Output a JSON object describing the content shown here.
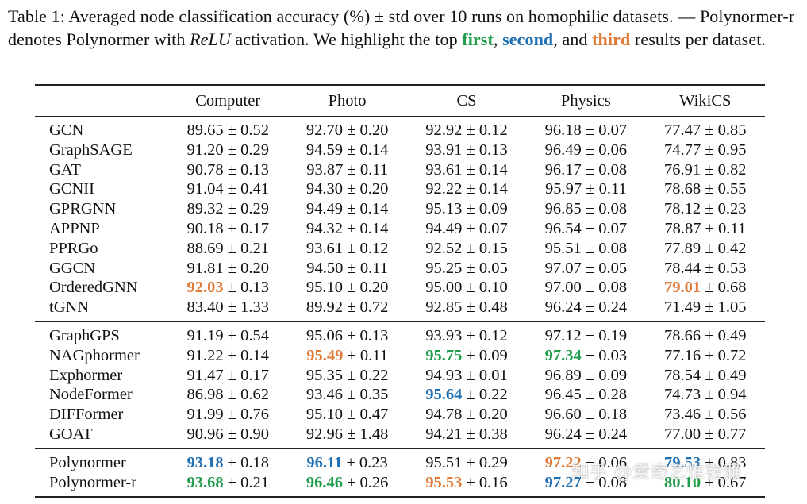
{
  "caption": {
    "part1": "Table 1: Averaged node classification accuracy (%) ± std over 10 runs on homophilic datasets. — Polynormer-r denotes Polynormer with ",
    "relu": "ReLU",
    "part2": " activation. We highlight the top ",
    "first": "first",
    "comma1": ", ",
    "second": "second",
    "comma2": ", and ",
    "third": "third",
    "part3": " results per dataset."
  },
  "colors": {
    "first": "#1f9d4a",
    "second": "#1f6fb2",
    "third": "#e07b39"
  },
  "table": {
    "columns": [
      "Computer",
      "Photo",
      "CS",
      "Physics",
      "WikiCS"
    ],
    "groups": [
      {
        "rows": [
          {
            "method": "GCN",
            "cells": [
              {
                "mean": "89.65",
                "std": "0.52"
              },
              {
                "mean": "92.70",
                "std": "0.20"
              },
              {
                "mean": "92.92",
                "std": "0.12"
              },
              {
                "mean": "96.18",
                "std": "0.07"
              },
              {
                "mean": "77.47",
                "std": "0.85"
              }
            ]
          },
          {
            "method": "GraphSAGE",
            "cells": [
              {
                "mean": "91.20",
                "std": "0.29"
              },
              {
                "mean": "94.59",
                "std": "0.14"
              },
              {
                "mean": "93.91",
                "std": "0.13"
              },
              {
                "mean": "96.49",
                "std": "0.06"
              },
              {
                "mean": "74.77",
                "std": "0.95"
              }
            ]
          },
          {
            "method": "GAT",
            "cells": [
              {
                "mean": "90.78",
                "std": "0.13"
              },
              {
                "mean": "93.87",
                "std": "0.11"
              },
              {
                "mean": "93.61",
                "std": "0.14"
              },
              {
                "mean": "96.17",
                "std": "0.08"
              },
              {
                "mean": "76.91",
                "std": "0.82"
              }
            ]
          },
          {
            "method": "GCNII",
            "cells": [
              {
                "mean": "91.04",
                "std": "0.41"
              },
              {
                "mean": "94.30",
                "std": "0.20"
              },
              {
                "mean": "92.22",
                "std": "0.14"
              },
              {
                "mean": "95.97",
                "std": "0.11"
              },
              {
                "mean": "78.68",
                "std": "0.55"
              }
            ]
          },
          {
            "method": "GPRGNN",
            "cells": [
              {
                "mean": "89.32",
                "std": "0.29"
              },
              {
                "mean": "94.49",
                "std": "0.14"
              },
              {
                "mean": "95.13",
                "std": "0.09"
              },
              {
                "mean": "96.85",
                "std": "0.08"
              },
              {
                "mean": "78.12",
                "std": "0.23"
              }
            ]
          },
          {
            "method": "APPNP",
            "cells": [
              {
                "mean": "90.18",
                "std": "0.17"
              },
              {
                "mean": "94.32",
                "std": "0.14"
              },
              {
                "mean": "94.49",
                "std": "0.07"
              },
              {
                "mean": "96.54",
                "std": "0.07"
              },
              {
                "mean": "78.87",
                "std": "0.11"
              }
            ]
          },
          {
            "method": "PPRGo",
            "cells": [
              {
                "mean": "88.69",
                "std": "0.21"
              },
              {
                "mean": "93.61",
                "std": "0.12"
              },
              {
                "mean": "92.52",
                "std": "0.15"
              },
              {
                "mean": "95.51",
                "std": "0.08"
              },
              {
                "mean": "77.89",
                "std": "0.42"
              }
            ]
          },
          {
            "method": "GGCN",
            "cells": [
              {
                "mean": "91.81",
                "std": "0.20"
              },
              {
                "mean": "94.50",
                "std": "0.11"
              },
              {
                "mean": "95.25",
                "std": "0.05"
              },
              {
                "mean": "97.07",
                "std": "0.05"
              },
              {
                "mean": "78.44",
                "std": "0.53"
              }
            ]
          },
          {
            "method": "OrderedGNN",
            "cells": [
              {
                "mean": "92.03",
                "std": "0.13",
                "rank": "third"
              },
              {
                "mean": "95.10",
                "std": "0.20"
              },
              {
                "mean": "95.00",
                "std": "0.10"
              },
              {
                "mean": "97.00",
                "std": "0.08"
              },
              {
                "mean": "79.01",
                "std": "0.68",
                "rank": "third"
              }
            ]
          },
          {
            "method": "tGNN",
            "cells": [
              {
                "mean": "83.40",
                "std": "1.33"
              },
              {
                "mean": "89.92",
                "std": "0.72"
              },
              {
                "mean": "92.85",
                "std": "0.48"
              },
              {
                "mean": "96.24",
                "std": "0.24"
              },
              {
                "mean": "71.49",
                "std": "1.05"
              }
            ]
          }
        ]
      },
      {
        "rows": [
          {
            "method": "GraphGPS",
            "cells": [
              {
                "mean": "91.19",
                "std": "0.54"
              },
              {
                "mean": "95.06",
                "std": "0.13"
              },
              {
                "mean": "93.93",
                "std": "0.12"
              },
              {
                "mean": "97.12",
                "std": "0.19"
              },
              {
                "mean": "78.66",
                "std": "0.49"
              }
            ]
          },
          {
            "method": "NAGphormer",
            "cells": [
              {
                "mean": "91.22",
                "std": "0.14"
              },
              {
                "mean": "95.49",
                "std": "0.11",
                "rank": "third"
              },
              {
                "mean": "95.75",
                "std": "0.09",
                "rank": "first"
              },
              {
                "mean": "97.34",
                "std": "0.03",
                "rank": "first"
              },
              {
                "mean": "77.16",
                "std": "0.72"
              }
            ]
          },
          {
            "method": "Exphormer",
            "cells": [
              {
                "mean": "91.47",
                "std": "0.17"
              },
              {
                "mean": "95.35",
                "std": "0.22"
              },
              {
                "mean": "94.93",
                "std": "0.01"
              },
              {
                "mean": "96.89",
                "std": "0.09"
              },
              {
                "mean": "78.54",
                "std": "0.49"
              }
            ]
          },
          {
            "method": "NodeFormer",
            "cells": [
              {
                "mean": "86.98",
                "std": "0.62"
              },
              {
                "mean": "93.46",
                "std": "0.35"
              },
              {
                "mean": "95.64",
                "std": "0.22",
                "rank": "second"
              },
              {
                "mean": "96.45",
                "std": "0.28"
              },
              {
                "mean": "74.73",
                "std": "0.94"
              }
            ]
          },
          {
            "method": "DIFFormer",
            "cells": [
              {
                "mean": "91.99",
                "std": "0.76"
              },
              {
                "mean": "95.10",
                "std": "0.47"
              },
              {
                "mean": "94.78",
                "std": "0.20"
              },
              {
                "mean": "96.60",
                "std": "0.18"
              },
              {
                "mean": "73.46",
                "std": "0.56"
              }
            ]
          },
          {
            "method": "GOAT",
            "cells": [
              {
                "mean": "90.96",
                "std": "0.90"
              },
              {
                "mean": "92.96",
                "std": "1.48"
              },
              {
                "mean": "94.21",
                "std": "0.38"
              },
              {
                "mean": "96.24",
                "std": "0.24"
              },
              {
                "mean": "77.00",
                "std": "0.77"
              }
            ]
          }
        ]
      },
      {
        "rows": [
          {
            "method": "Polynormer",
            "cells": [
              {
                "mean": "93.18",
                "std": "0.18",
                "rank": "second"
              },
              {
                "mean": "96.11",
                "std": "0.23",
                "rank": "second"
              },
              {
                "mean": "95.51",
                "std": "0.29"
              },
              {
                "mean": "97.22",
                "std": "0.06",
                "rank": "third"
              },
              {
                "mean": "79.53",
                "std": "0.83",
                "rank": "second"
              }
            ]
          },
          {
            "method": "Polynormer-r",
            "cells": [
              {
                "mean": "93.68",
                "std": "0.21",
                "rank": "first"
              },
              {
                "mean": "96.46",
                "std": "0.26",
                "rank": "first"
              },
              {
                "mean": "95.53",
                "std": "0.16",
                "rank": "third"
              },
              {
                "mean": "97.27",
                "std": "0.08",
                "rank": "second"
              },
              {
                "mean": "80.10",
                "std": "0.67",
                "rank": "first"
              }
            ]
          }
        ]
      }
    ]
  },
  "watermark": "知乎 @爱奇艺惟铨雅"
}
